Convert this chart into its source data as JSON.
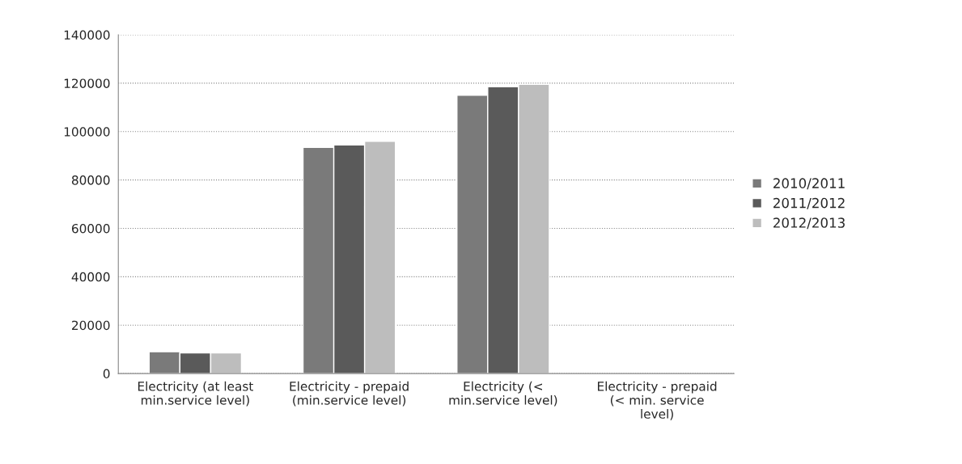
{
  "chart_data": {
    "type": "bar",
    "categories": [
      "Electricity (at least\nmin.service level)",
      "Electricity - prepaid\n(min.service level)",
      "Electricity (<\nmin.service level)",
      "Electricity - prepaid\n(< min. service\nlevel)"
    ],
    "series": [
      {
        "name": "2010/2011",
        "color": "#7a7a7a",
        "values": [
          9000,
          93500,
          115000,
          null
        ]
      },
      {
        "name": "2011/2012",
        "color": "#5a5a5a",
        "values": [
          8500,
          94500,
          118500,
          null
        ]
      },
      {
        "name": "2012/2013",
        "color": "#bdbdbd",
        "values": [
          8500,
          96000,
          119500,
          null
        ]
      }
    ],
    "ylim": [
      0,
      140000
    ],
    "yticks": [
      0,
      20000,
      40000,
      60000,
      80000,
      100000,
      120000,
      140000
    ],
    "grid": "y",
    "legend": "right"
  }
}
